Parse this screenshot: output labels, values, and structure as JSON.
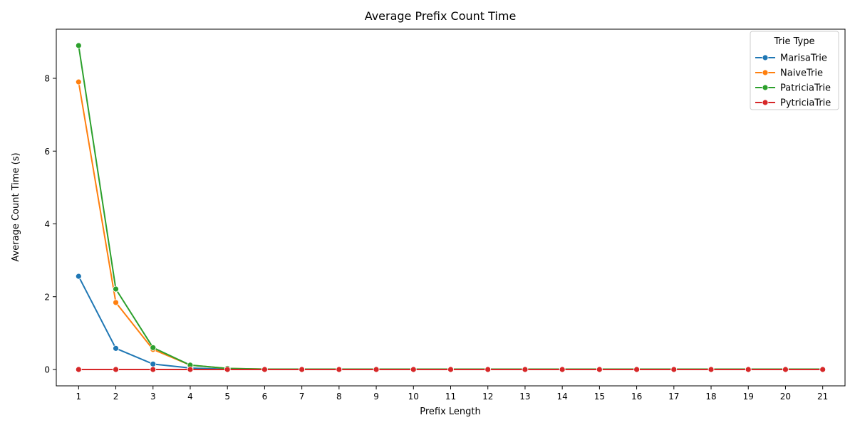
{
  "chart_data": {
    "type": "line",
    "title": "Average Prefix Count Time",
    "xlabel": "Prefix Length",
    "ylabel": "Average Count Time (s)",
    "x": [
      1,
      2,
      3,
      4,
      5,
      6,
      7,
      8,
      9,
      10,
      11,
      12,
      13,
      14,
      15,
      16,
      17,
      18,
      19,
      20,
      21
    ],
    "x_ticks": [
      "1",
      "2",
      "3",
      "4",
      "5",
      "6",
      "7",
      "8",
      "9",
      "10",
      "11",
      "12",
      "13",
      "14",
      "15",
      "16",
      "17",
      "18",
      "19",
      "20",
      "21"
    ],
    "xlim": [
      0.4,
      21.6
    ],
    "ylim": [
      -0.45,
      9.35
    ],
    "y_ticks": [
      0,
      2,
      4,
      6,
      8
    ],
    "grid": false,
    "legend": {
      "title": "Trie Type",
      "placement": "top-right"
    },
    "series": [
      {
        "name": "MarisaTrie",
        "color": "#1f77b4",
        "values": [
          2.56,
          0.58,
          0.15,
          0.04,
          0.01,
          0.0,
          0.0,
          0.0,
          0.0,
          0.0,
          0.0,
          0.0,
          0.0,
          0.0,
          0.0,
          0.0,
          0.0,
          0.0,
          0.0,
          0.0,
          0.0
        ]
      },
      {
        "name": "NaiveTrie",
        "color": "#ff7f0e",
        "values": [
          7.9,
          1.84,
          0.55,
          0.12,
          0.03,
          0.01,
          0.01,
          0.01,
          0.01,
          0.01,
          0.01,
          0.01,
          0.01,
          0.01,
          0.01,
          0.01,
          0.01,
          0.01,
          0.01,
          0.01,
          0.01
        ]
      },
      {
        "name": "PatriciaTrie",
        "color": "#2ca02c",
        "values": [
          8.9,
          2.21,
          0.6,
          0.12,
          0.03,
          0.01,
          0.01,
          0.01,
          0.01,
          0.01,
          0.01,
          0.01,
          0.01,
          0.01,
          0.01,
          0.01,
          0.01,
          0.01,
          0.01,
          0.01,
          0.01
        ]
      },
      {
        "name": "PytriciaTrie",
        "color": "#d62728",
        "values": [
          0.0,
          0.0,
          0.0,
          0.0,
          0.0,
          0.0,
          0.0,
          0.0,
          0.0,
          0.0,
          0.0,
          0.0,
          0.0,
          0.0,
          0.0,
          0.0,
          0.0,
          0.0,
          0.0,
          0.0,
          0.0
        ]
      }
    ]
  }
}
